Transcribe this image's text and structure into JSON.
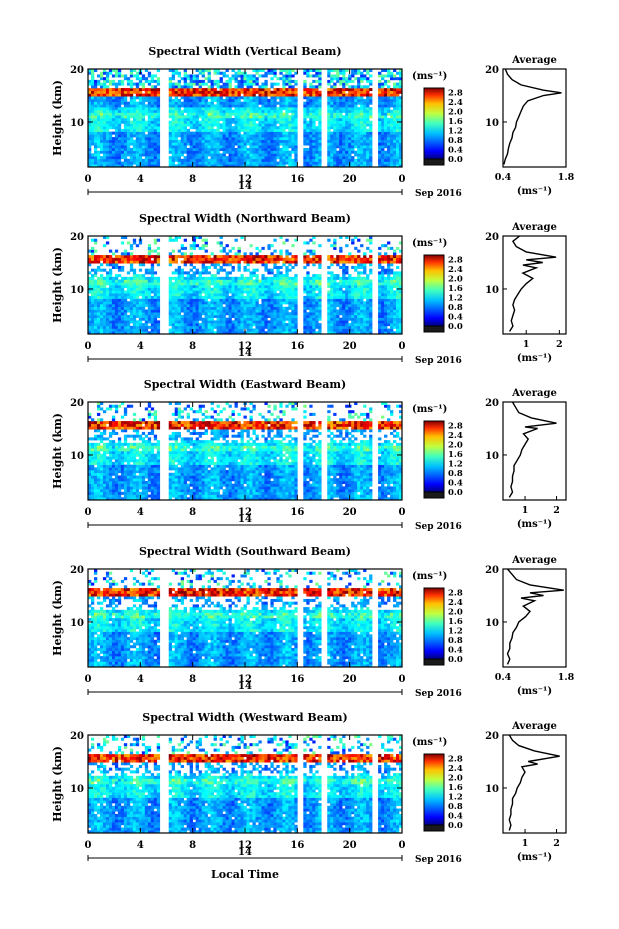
{
  "figure": {
    "xlabel_bottom": "Local Time",
    "date_label": "Sep 2016",
    "day_label": "14"
  },
  "chart_data": [
    {
      "type": "heatmap",
      "title": "Spectral Width (Vertical Beam)",
      "ylabel": "Height (km)",
      "xlim": [
        0,
        24
      ],
      "ylim": [
        1.5,
        20
      ],
      "xticks": [
        "0",
        "4",
        "8",
        "12",
        "16",
        "20",
        "0"
      ],
      "yticks": [
        "10",
        "20"
      ],
      "colorbar": {
        "unit": "(ms⁻¹)",
        "ticks": [
          "0.0",
          "0.4",
          "0.8",
          "1.2",
          "1.6",
          "2.0",
          "2.4",
          "2.8"
        ],
        "range": [
          0,
          3.0
        ]
      },
      "data_gaps_hours": [
        [
          5.5,
          6.2
        ],
        [
          16.0,
          16.4
        ],
        [
          17.8,
          18.2
        ],
        [
          21.7,
          22.1
        ]
      ],
      "average_profile": {
        "title": "Average",
        "xlabel": "(ms⁻¹)",
        "xticks": [
          "0.4",
          "1.8"
        ],
        "xlim": [
          0.4,
          1.8
        ],
        "yticks": [
          "10",
          "20"
        ],
        "points": [
          [
            0.42,
            2
          ],
          [
            0.45,
            3
          ],
          [
            0.5,
            4
          ],
          [
            0.52,
            5
          ],
          [
            0.55,
            6
          ],
          [
            0.6,
            7
          ],
          [
            0.62,
            8
          ],
          [
            0.68,
            9
          ],
          [
            0.7,
            10
          ],
          [
            0.75,
            11
          ],
          [
            0.8,
            12
          ],
          [
            0.85,
            13
          ],
          [
            0.95,
            14
          ],
          [
            1.3,
            15
          ],
          [
            1.7,
            15.5
          ],
          [
            1.3,
            16
          ],
          [
            0.8,
            17
          ],
          [
            0.6,
            18
          ],
          [
            0.5,
            19
          ],
          [
            0.45,
            20
          ]
        ]
      }
    },
    {
      "type": "heatmap",
      "title": "Spectral Width (Northward Beam)",
      "ylabel": "Height (km)",
      "xlim": [
        0,
        24
      ],
      "ylim": [
        1.5,
        20
      ],
      "xticks": [
        "0",
        "4",
        "8",
        "12",
        "16",
        "20",
        "0"
      ],
      "yticks": [
        "10",
        "20"
      ],
      "colorbar": {
        "unit": "(ms⁻¹)",
        "ticks": [
          "0.0",
          "0.4",
          "0.8",
          "1.2",
          "1.6",
          "2.0",
          "2.4",
          "2.8"
        ],
        "range": [
          0,
          3.0
        ]
      },
      "data_gaps_hours": [
        [
          5.5,
          6.2
        ],
        [
          16.0,
          16.4
        ],
        [
          17.8,
          18.2
        ],
        [
          21.7,
          22.1
        ]
      ],
      "average_profile": {
        "title": "Average",
        "xlabel": "(ms⁻¹)",
        "xticks": [
          "1",
          "2"
        ],
        "xlim": [
          0.3,
          2.2
        ],
        "yticks": [
          "10",
          "20"
        ],
        "points": [
          [
            0.5,
            2
          ],
          [
            0.6,
            3
          ],
          [
            0.55,
            4
          ],
          [
            0.6,
            5
          ],
          [
            0.65,
            6
          ],
          [
            0.6,
            7
          ],
          [
            0.65,
            8
          ],
          [
            0.75,
            9
          ],
          [
            0.85,
            10
          ],
          [
            1.0,
            11
          ],
          [
            1.2,
            12
          ],
          [
            0.9,
            13
          ],
          [
            1.3,
            14
          ],
          [
            0.9,
            14.5
          ],
          [
            1.5,
            15
          ],
          [
            1.0,
            15.5
          ],
          [
            1.9,
            16
          ],
          [
            1.0,
            17
          ],
          [
            0.7,
            18
          ],
          [
            0.6,
            19
          ],
          [
            0.8,
            20
          ]
        ]
      }
    },
    {
      "type": "heatmap",
      "title": "Spectral Width (Eastward Beam)",
      "ylabel": "Height (km)",
      "xlim": [
        0,
        24
      ],
      "ylim": [
        1.5,
        20
      ],
      "xticks": [
        "0",
        "4",
        "8",
        "12",
        "16",
        "20",
        "0"
      ],
      "yticks": [
        "10",
        "20"
      ],
      "colorbar": {
        "unit": "(ms⁻¹)",
        "ticks": [
          "0.0",
          "0.4",
          "0.8",
          "1.2",
          "1.6",
          "2.0",
          "2.4",
          "2.8"
        ],
        "range": [
          0,
          3.0
        ]
      },
      "data_gaps_hours": [
        [
          5.5,
          6.2
        ],
        [
          16.0,
          16.4
        ],
        [
          17.8,
          18.2
        ],
        [
          21.7,
          22.1
        ]
      ],
      "average_profile": {
        "title": "Average",
        "xlabel": "(ms⁻¹)",
        "xticks": [
          "1",
          "2"
        ],
        "xlim": [
          0.3,
          2.3
        ],
        "yticks": [
          "10",
          "20"
        ],
        "points": [
          [
            0.5,
            2
          ],
          [
            0.6,
            3
          ],
          [
            0.55,
            4
          ],
          [
            0.6,
            5
          ],
          [
            0.6,
            6
          ],
          [
            0.65,
            7
          ],
          [
            0.65,
            8
          ],
          [
            0.75,
            9
          ],
          [
            0.85,
            10
          ],
          [
            0.9,
            11
          ],
          [
            1.0,
            12
          ],
          [
            1.1,
            13
          ],
          [
            0.95,
            14
          ],
          [
            1.4,
            15
          ],
          [
            1.0,
            15.3
          ],
          [
            2.0,
            16
          ],
          [
            1.2,
            17
          ],
          [
            0.8,
            18
          ],
          [
            0.7,
            19
          ],
          [
            0.6,
            20
          ]
        ]
      }
    },
    {
      "type": "heatmap",
      "title": "Spectral Width (Southward Beam)",
      "ylabel": "Height (km)",
      "xlim": [
        0,
        24
      ],
      "ylim": [
        1.5,
        20
      ],
      "xticks": [
        "0",
        "4",
        "8",
        "12",
        "16",
        "20",
        "0"
      ],
      "yticks": [
        "10",
        "20"
      ],
      "colorbar": {
        "unit": "(ms⁻¹)",
        "ticks": [
          "0.0",
          "0.4",
          "0.8",
          "1.2",
          "1.6",
          "2.0",
          "2.4",
          "2.8"
        ],
        "range": [
          0,
          3.0
        ]
      },
      "data_gaps_hours": [
        [
          5.5,
          6.2
        ],
        [
          16.0,
          16.4
        ],
        [
          17.8,
          18.2
        ],
        [
          21.7,
          22.1
        ]
      ],
      "average_profile": {
        "title": "Average",
        "xlabel": "(ms⁻¹)",
        "xticks": [
          "0.4",
          "1.8"
        ],
        "xlim": [
          0.4,
          1.8
        ],
        "yticks": [
          "10",
          "20"
        ],
        "points": [
          [
            0.5,
            2
          ],
          [
            0.55,
            3
          ],
          [
            0.5,
            4
          ],
          [
            0.55,
            5
          ],
          [
            0.55,
            6
          ],
          [
            0.6,
            7
          ],
          [
            0.62,
            8
          ],
          [
            0.7,
            9
          ],
          [
            0.75,
            10
          ],
          [
            0.9,
            11
          ],
          [
            1.0,
            12
          ],
          [
            0.85,
            13
          ],
          [
            1.1,
            14
          ],
          [
            0.8,
            14.5
          ],
          [
            1.3,
            15
          ],
          [
            1.0,
            15.5
          ],
          [
            1.75,
            16
          ],
          [
            1.0,
            17
          ],
          [
            0.7,
            18
          ],
          [
            0.6,
            19
          ],
          [
            0.5,
            20
          ]
        ]
      }
    },
    {
      "type": "heatmap",
      "title": "Spectral Width (Westward Beam)",
      "ylabel": "Height (km)",
      "xlim": [
        0,
        24
      ],
      "ylim": [
        1.5,
        20
      ],
      "xticks": [
        "0",
        "4",
        "8",
        "12",
        "16",
        "20",
        "0"
      ],
      "yticks": [
        "10",
        "20"
      ],
      "colorbar": {
        "unit": "(ms⁻¹)",
        "ticks": [
          "0.0",
          "0.4",
          "0.8",
          "1.2",
          "1.6",
          "2.0",
          "2.4",
          "2.8"
        ],
        "range": [
          0,
          3.0
        ]
      },
      "data_gaps_hours": [
        [
          5.5,
          6.2
        ],
        [
          16.0,
          16.4
        ],
        [
          17.8,
          18.2
        ],
        [
          21.7,
          22.1
        ]
      ],
      "average_profile": {
        "title": "Average",
        "xlabel": "(ms⁻¹)",
        "xticks": [
          "1",
          "2"
        ],
        "xlim": [
          0.3,
          2.3
        ],
        "yticks": [
          "10",
          "20"
        ],
        "points": [
          [
            0.5,
            2
          ],
          [
            0.55,
            3
          ],
          [
            0.5,
            4
          ],
          [
            0.55,
            5
          ],
          [
            0.55,
            6
          ],
          [
            0.6,
            7
          ],
          [
            0.6,
            8
          ],
          [
            0.7,
            9
          ],
          [
            0.75,
            10
          ],
          [
            0.85,
            11
          ],
          [
            0.9,
            12
          ],
          [
            1.0,
            13
          ],
          [
            0.9,
            14
          ],
          [
            1.4,
            14.5
          ],
          [
            1.1,
            15
          ],
          [
            2.1,
            16
          ],
          [
            1.3,
            17
          ],
          [
            0.8,
            18
          ],
          [
            0.6,
            19
          ],
          [
            0.5,
            20
          ]
        ]
      }
    }
  ]
}
